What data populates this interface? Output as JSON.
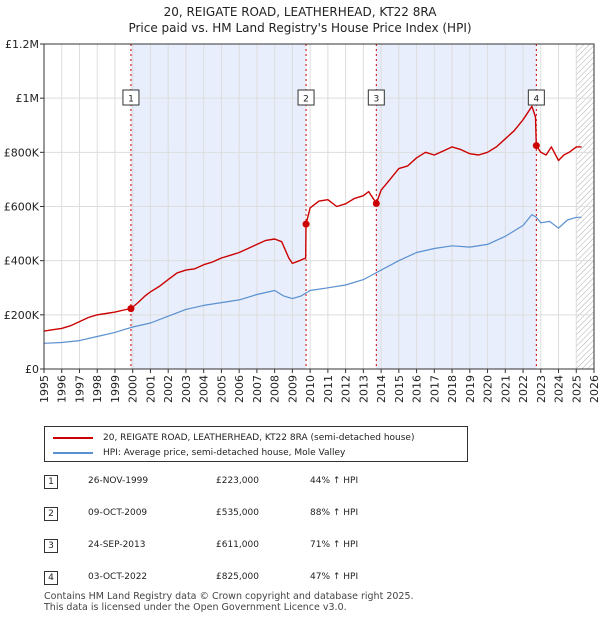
{
  "chart_data": {
    "type": "line",
    "title": "20, REIGATE ROAD, LEATHERHEAD, KT22 8RA",
    "subtitle": "Price paid vs. HM Land Registry's House Price Index (HPI)",
    "xlim": [
      1995,
      2026
    ],
    "ylim": [
      0,
      1200000
    ],
    "y_ticks": [
      {
        "value": 0,
        "label": "£0"
      },
      {
        "value": 200000,
        "label": "£200K"
      },
      {
        "value": 400000,
        "label": "£400K"
      },
      {
        "value": 600000,
        "label": "£600K"
      },
      {
        "value": 800000,
        "label": "£800K"
      },
      {
        "value": 1000000,
        "label": "£1M"
      },
      {
        "value": 1200000,
        "label": "£1.2M"
      }
    ],
    "x_ticks": [
      "1995",
      "1996",
      "1997",
      "1998",
      "1999",
      "2000",
      "2001",
      "2002",
      "2003",
      "2004",
      "2005",
      "2006",
      "2007",
      "2008",
      "2009",
      "2010",
      "2011",
      "2012",
      "2013",
      "2014",
      "2015",
      "2016",
      "2017",
      "2018",
      "2019",
      "2020",
      "2021",
      "2022",
      "2023",
      "2024",
      "2025",
      "2026"
    ],
    "shaded_regions": [
      [
        1999.9,
        2009.77
      ],
      [
        2013.73,
        2022.75
      ]
    ],
    "hatch_from": 2025.0,
    "series": [
      {
        "name": "20, REIGATE ROAD, LEATHERHEAD, KT22 8RA (semi-detached house)",
        "color": "#cc0000",
        "x": [
          1995.0,
          1995.5,
          1996.0,
          1996.5,
          1997.0,
          1997.5,
          1998.0,
          1998.5,
          1999.0,
          1999.5,
          1999.9,
          2000.3,
          2000.7,
          2001.0,
          2001.5,
          2002.0,
          2002.5,
          2003.0,
          2003.5,
          2004.0,
          2004.5,
          2005.0,
          2005.5,
          2006.0,
          2006.5,
          2007.0,
          2007.5,
          2008.0,
          2008.4,
          2008.8,
          2009.0,
          2009.4,
          2009.75,
          2009.77,
          2010.0,
          2010.5,
          2011.0,
          2011.5,
          2012.0,
          2012.5,
          2013.0,
          2013.3,
          2013.6,
          2013.73,
          2014.0,
          2014.5,
          2015.0,
          2015.5,
          2016.0,
          2016.5,
          2017.0,
          2017.5,
          2018.0,
          2018.5,
          2019.0,
          2019.5,
          2020.0,
          2020.5,
          2021.0,
          2021.5,
          2022.0,
          2022.3,
          2022.5,
          2022.6,
          2022.7,
          2022.75,
          2023.0,
          2023.3,
          2023.6,
          2024.0,
          2024.3,
          2024.6,
          2025.0,
          2025.3
        ],
        "values": [
          140000,
          145000,
          150000,
          160000,
          175000,
          190000,
          200000,
          205000,
          210000,
          218000,
          223000,
          245000,
          270000,
          285000,
          305000,
          330000,
          355000,
          365000,
          370000,
          385000,
          395000,
          410000,
          420000,
          430000,
          445000,
          460000,
          475000,
          480000,
          470000,
          410000,
          390000,
          400000,
          410000,
          535000,
          595000,
          620000,
          625000,
          600000,
          610000,
          630000,
          640000,
          655000,
          625000,
          611000,
          660000,
          700000,
          740000,
          750000,
          780000,
          800000,
          790000,
          805000,
          820000,
          810000,
          795000,
          790000,
          800000,
          820000,
          850000,
          880000,
          920000,
          950000,
          970000,
          950000,
          930000,
          825000,
          800000,
          790000,
          820000,
          770000,
          790000,
          800000,
          820000,
          820000
        ]
      },
      {
        "name": "HPI: Average price, semi-detached house, Mole Valley",
        "color": "#5a8fd0",
        "x": [
          1995.0,
          1996.0,
          1997.0,
          1998.0,
          1999.0,
          2000.0,
          2001.0,
          2002.0,
          2003.0,
          2004.0,
          2005.0,
          2006.0,
          2007.0,
          2008.0,
          2008.5,
          2009.0,
          2009.5,
          2010.0,
          2011.0,
          2012.0,
          2013.0,
          2014.0,
          2015.0,
          2016.0,
          2017.0,
          2018.0,
          2019.0,
          2020.0,
          2021.0,
          2022.0,
          2022.5,
          2022.75,
          2023.0,
          2023.5,
          2024.0,
          2024.5,
          2025.0,
          2025.3
        ],
        "values": [
          95000,
          98000,
          105000,
          120000,
          135000,
          155000,
          170000,
          195000,
          220000,
          235000,
          245000,
          255000,
          275000,
          290000,
          270000,
          260000,
          270000,
          290000,
          300000,
          310000,
          330000,
          365000,
          400000,
          430000,
          445000,
          455000,
          450000,
          460000,
          490000,
          530000,
          570000,
          560000,
          540000,
          545000,
          520000,
          550000,
          560000,
          560000
        ]
      }
    ],
    "markers": [
      {
        "label": "1",
        "x": 1999.9,
        "value": 223000
      },
      {
        "label": "2",
        "x": 2009.77,
        "value": 535000
      },
      {
        "label": "3",
        "x": 2013.73,
        "value": 611000
      },
      {
        "label": "4",
        "x": 2022.75,
        "value": 825000
      }
    ]
  },
  "legend": {
    "entries": [
      {
        "label": "20, REIGATE ROAD, LEATHERHEAD, KT22 8RA (semi-detached house)",
        "color": "#cc0000"
      },
      {
        "label": "HPI: Average price, semi-detached house, Mole Valley",
        "color": "#5a8fd0"
      }
    ]
  },
  "sales": [
    {
      "num": "1",
      "date": "26-NOV-1999",
      "price": "£223,000",
      "hpi": "44% ↑ HPI"
    },
    {
      "num": "2",
      "date": "09-OCT-2009",
      "price": "£535,000",
      "hpi": "88% ↑ HPI"
    },
    {
      "num": "3",
      "date": "24-SEP-2013",
      "price": "£611,000",
      "hpi": "71% ↑ HPI"
    },
    {
      "num": "4",
      "date": "03-OCT-2022",
      "price": "£825,000",
      "hpi": "47% ↑ HPI"
    }
  ],
  "footer": {
    "line1": "Contains HM Land Registry data © Crown copyright and database right 2025.",
    "line2": "This data is licensed under the Open Government Licence v3.0."
  }
}
